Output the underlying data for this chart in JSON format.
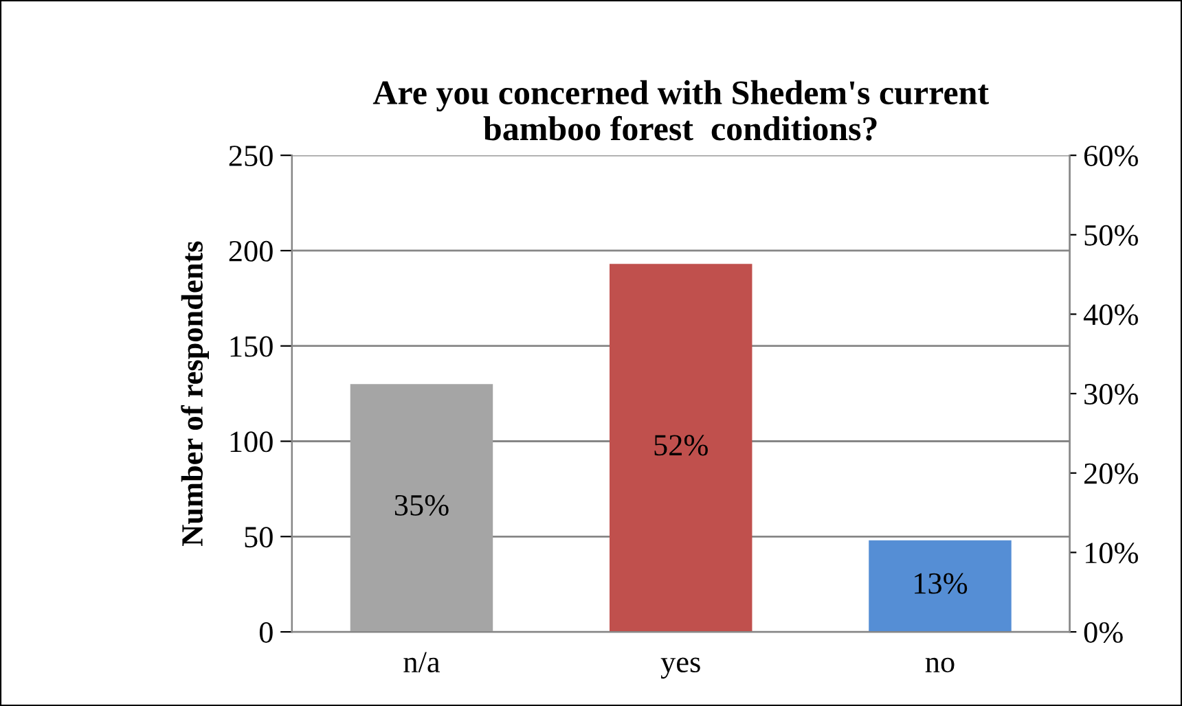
{
  "chart_data": {
    "type": "bar",
    "title": "Are you concerned with Shedem's current\nbamboo forest  conditions?",
    "ylabel": "Number of respondents",
    "categories": [
      "n/a",
      "yes",
      "no"
    ],
    "values": [
      130,
      193,
      48
    ],
    "colors": [
      "#a5a5a5",
      "#c0504d",
      "#558ed5"
    ],
    "annotations": [
      "35%",
      "52%",
      "13%"
    ],
    "ylim": [
      0,
      250
    ],
    "yticks": [
      0,
      50,
      100,
      150,
      200,
      250
    ],
    "y2lim": [
      0,
      60
    ],
    "y2ticks": [
      {
        "value": 0,
        "label": "0%"
      },
      {
        "value": 10,
        "label": "10%"
      },
      {
        "value": 20,
        "label": "20%"
      },
      {
        "value": 30,
        "label": "30%"
      },
      {
        "value": 40,
        "label": "40%"
      },
      {
        "value": 50,
        "label": "50%"
      },
      {
        "value": 60,
        "label": "60%"
      }
    ],
    "grid": "y",
    "legend": false
  }
}
